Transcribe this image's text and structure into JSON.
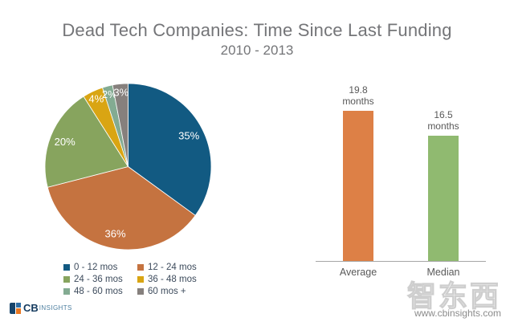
{
  "header": {
    "title": "Dead Tech Companies: Time Since Last Funding",
    "subtitle": "2010 - 2013"
  },
  "chart_data": [
    {
      "type": "pie",
      "name": "time-since-last-funding-distribution",
      "categories": [
        "0 - 12 mos",
        "12 - 24 mos",
        "24 - 36 mos",
        "36 - 48 mos",
        "48 - 60 mos",
        "60 mos +"
      ],
      "values": [
        35,
        36,
        20,
        4,
        2,
        3
      ],
      "value_suffix": "%",
      "colors": [
        "#125a82",
        "#c57340",
        "#87a45e",
        "#d9a513",
        "#83ab92",
        "#86807d"
      ],
      "start_angle_deg": 0,
      "direction": "clockwise",
      "data_label_color": "#ffffff",
      "legend_position": "below-left",
      "legend_columns": 2
    },
    {
      "type": "bar",
      "name": "months-since-last-funding-summary",
      "categories": [
        "Average",
        "Median"
      ],
      "values": [
        19.8,
        16.5
      ],
      "value_label_unit": "months",
      "colors": [
        "#dd8046",
        "#90ba70"
      ],
      "ylim": [
        0,
        19.8
      ],
      "gridlines": false,
      "axis_line_color": "#a6a6a6"
    }
  ],
  "footer": {
    "logo": {
      "cb": "CB",
      "insights": "INSIGHTS"
    },
    "watermark": "智东西",
    "url": "www.cbinsights.com"
  }
}
